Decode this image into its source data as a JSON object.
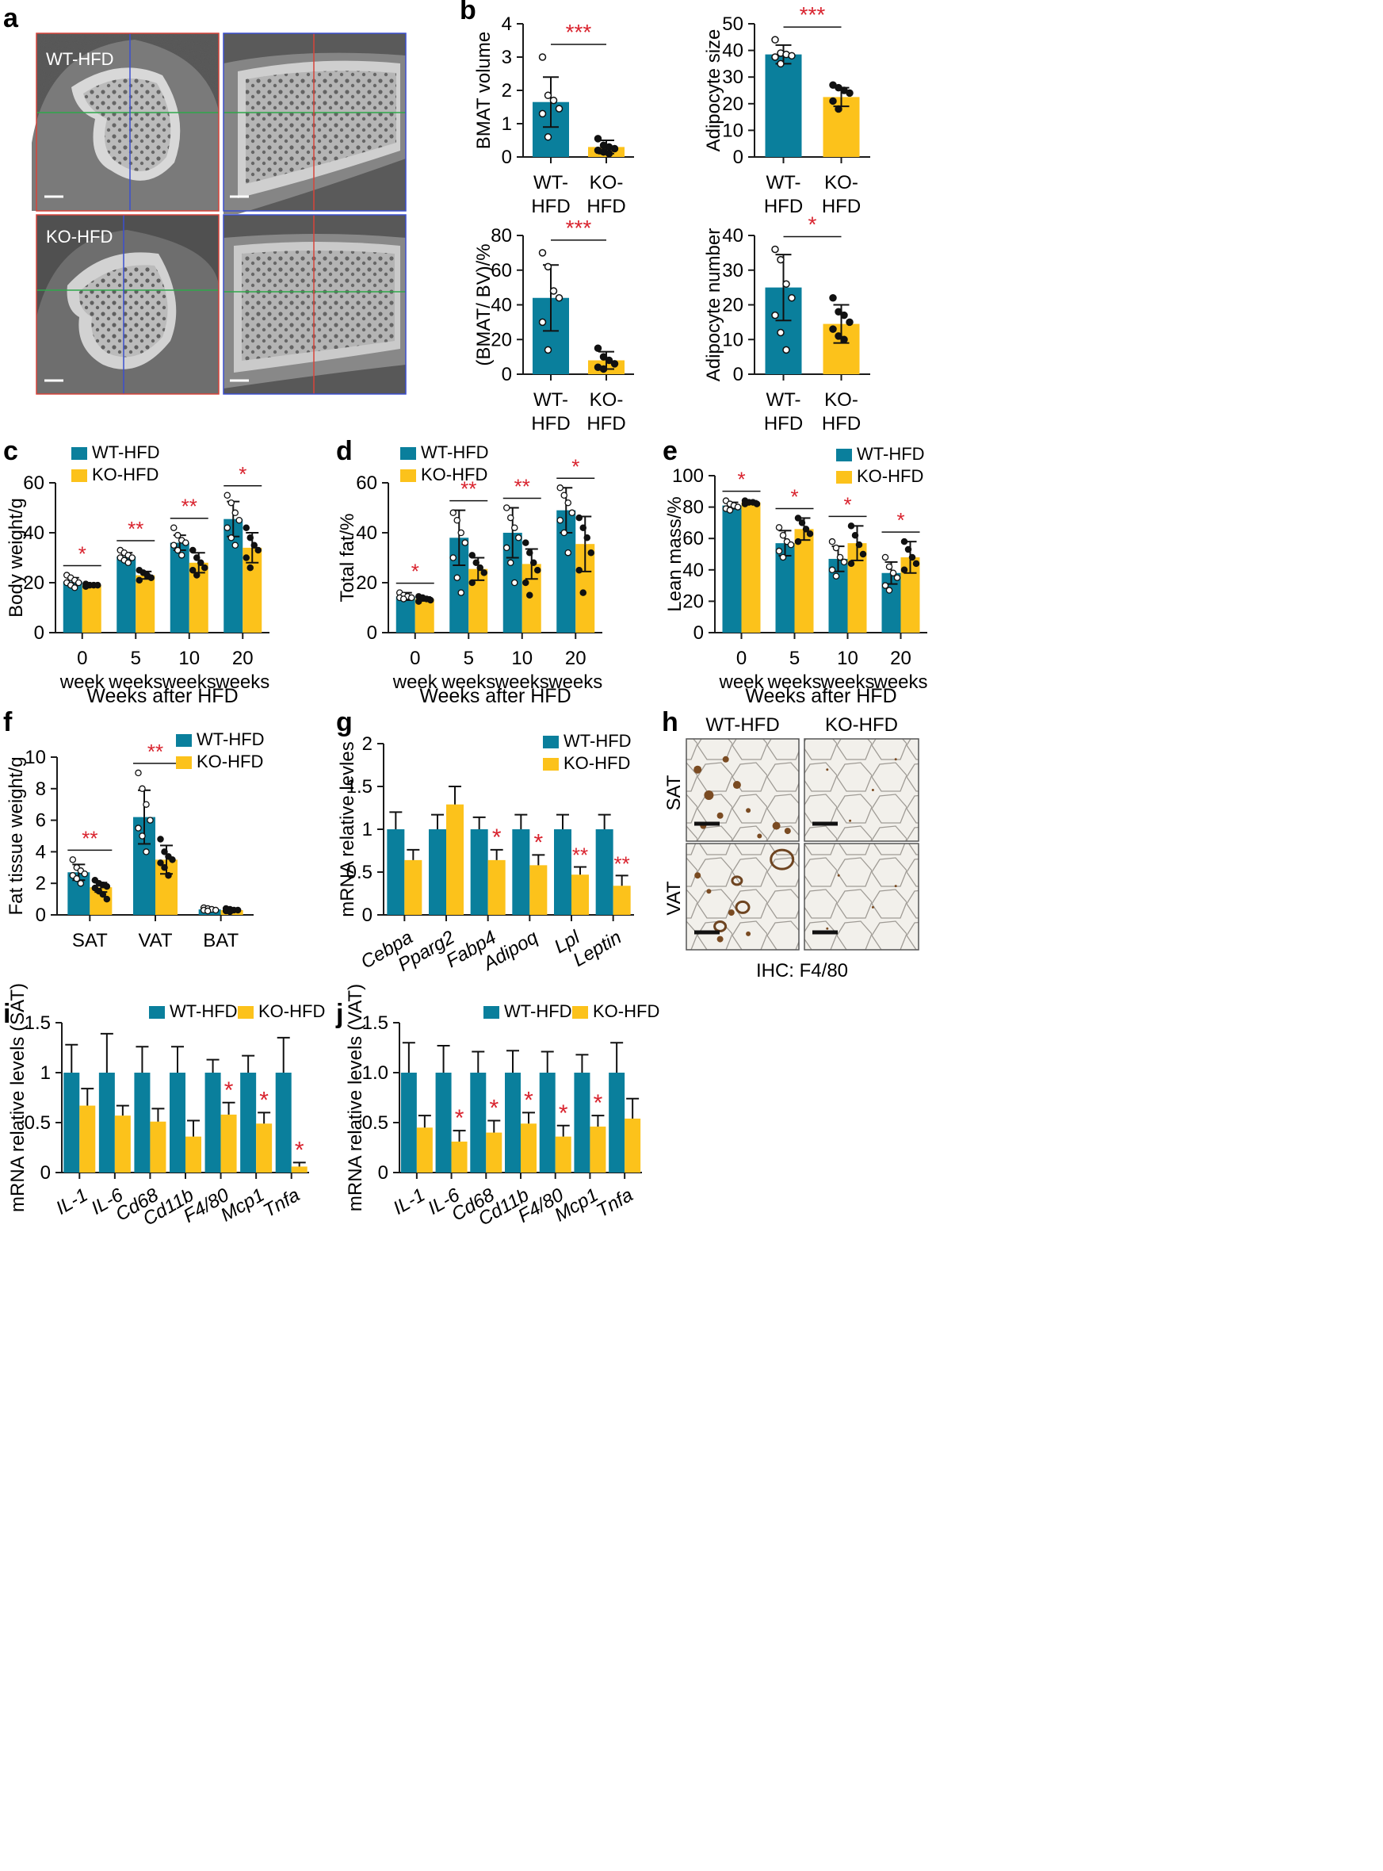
{
  "colors": {
    "wt": "#0a7f9c",
    "ko": "#fcc21b",
    "sig": "#d9232e",
    "axis": "#1a1a1a"
  },
  "panel_letters": {
    "a": "a",
    "b": "b",
    "c": "c",
    "d": "d",
    "e": "e",
    "f": "f",
    "g": "g",
    "h": "h",
    "i": "i",
    "j": "j"
  },
  "panel_a": {
    "top_label": "WT-HFD",
    "bottom_label": "KO-HFD"
  },
  "panel_h": {
    "col1": "WT-HFD",
    "col2": "KO-HFD",
    "row1": "SAT",
    "row2": "VAT",
    "caption": "IHC: F4/80"
  },
  "chart_data": [
    {
      "id": "b1",
      "type": "bar",
      "ylabel": "BMAT volume",
      "ylim": [
        0,
        4
      ],
      "yticks": [
        "0",
        "1",
        "2",
        "3",
        "4"
      ],
      "categories": [
        [
          "WT-",
          "HFD"
        ],
        [
          "KO-",
          "HFD"
        ]
      ],
      "values": [
        1.65,
        0.3
      ],
      "errors": [
        0.75,
        0.2
      ],
      "sig": [
        "***"
      ],
      "points": [
        [
          3.0,
          1.85,
          1.7,
          1.45,
          1.3,
          0.6
        ],
        [
          0.55,
          0.35,
          0.3,
          0.25,
          0.2,
          0.15,
          0.1
        ]
      ]
    },
    {
      "id": "b2",
      "type": "bar",
      "ylabel": "Adipocyte size",
      "ylim": [
        0,
        50
      ],
      "yticks": [
        "0",
        "10",
        "20",
        "30",
        "40",
        "50"
      ],
      "categories": [
        [
          "WT-",
          "HFD"
        ],
        [
          "KO-",
          "HFD"
        ]
      ],
      "values": [
        38.5,
        22.5
      ],
      "errors": [
        3.5,
        3.5
      ],
      "sig": [
        "***"
      ],
      "points": [
        [
          44,
          39,
          38.5,
          38,
          37.5,
          35
        ],
        [
          27,
          26,
          25,
          24,
          21,
          18
        ]
      ]
    },
    {
      "id": "b3",
      "type": "bar",
      "ylabel": "(BMAT/ BV)/%",
      "ylim": [
        0,
        80
      ],
      "yticks": [
        "0",
        "20",
        "40",
        "60",
        "80"
      ],
      "categories": [
        [
          "WT-",
          "HFD"
        ],
        [
          "KO-",
          "HFD"
        ]
      ],
      "values": [
        44,
        8
      ],
      "errors": [
        19,
        5
      ],
      "sig": [
        "***"
      ],
      "points": [
        [
          70,
          62,
          48,
          44,
          30,
          14
        ],
        [
          15,
          10,
          8,
          6,
          4,
          3
        ]
      ]
    },
    {
      "id": "b4",
      "type": "bar",
      "ylabel": "Adipocyte number",
      "ylim": [
        0,
        40
      ],
      "yticks": [
        "0",
        "10",
        "20",
        "30",
        "40"
      ],
      "categories": [
        [
          "WT-",
          "HFD"
        ],
        [
          "KO-",
          "HFD"
        ]
      ],
      "values": [
        25,
        14.5
      ],
      "errors": [
        9.5,
        5.5
      ],
      "sig": [
        "*"
      ],
      "points": [
        [
          36,
          33,
          26,
          22,
          17,
          12,
          7
        ],
        [
          22,
          18,
          17,
          15,
          13,
          11,
          10
        ]
      ]
    },
    {
      "id": "c",
      "type": "bar",
      "ylabel": "Body weight/g",
      "xlabel": "Weeks after HFD",
      "ylim": [
        0,
        60
      ],
      "yticks": [
        "0",
        "20",
        "40",
        "60"
      ],
      "categories": [
        [
          "0",
          "week"
        ],
        [
          "5",
          "weeks"
        ],
        [
          "10",
          "weeks"
        ],
        [
          "20",
          "weeks"
        ]
      ],
      "series": [
        {
          "name": "WT-HFD",
          "values": [
            20.5,
            30.5,
            36,
            45.5
          ],
          "errors": [
            1.5,
            1.5,
            3,
            7
          ]
        },
        {
          "name": "KO-HFD",
          "values": [
            19,
            23,
            28,
            34
          ],
          "errors": [
            0.5,
            1.5,
            4,
            6
          ]
        }
      ],
      "sig": [
        "*",
        "**",
        "**",
        "*"
      ],
      "legend": "top-left",
      "points": [
        [
          [
            23,
            22,
            21,
            20,
            20,
            19,
            18
          ],
          [
            33,
            32,
            31,
            30,
            30,
            29,
            28
          ],
          [
            42,
            39,
            37,
            36,
            35,
            33,
            31
          ],
          [
            55,
            52,
            48,
            45,
            42,
            38,
            35
          ]
        ],
        [
          [
            19.5,
            19,
            19,
            19,
            18.5
          ],
          [
            25,
            24,
            23,
            22,
            21
          ],
          [
            33,
            30,
            28,
            26,
            25,
            23
          ],
          [
            42,
            38,
            35,
            33,
            30,
            26
          ]
        ]
      ]
    },
    {
      "id": "d",
      "type": "bar",
      "ylabel": "Total fat/%",
      "xlabel": "Weeks after HFD",
      "ylim": [
        0,
        60
      ],
      "yticks": [
        "0",
        "20",
        "40",
        "60"
      ],
      "categories": [
        [
          "0",
          "week"
        ],
        [
          "5",
          "weeks"
        ],
        [
          "10",
          "weeks"
        ],
        [
          "20",
          "weeks"
        ]
      ],
      "series": [
        {
          "name": "WT-HFD",
          "values": [
            14.5,
            38,
            40,
            49
          ],
          "errors": [
            1.5,
            11,
            10,
            9
          ]
        },
        {
          "name": "KO-HFD",
          "values": [
            13.5,
            25.5,
            27.5,
            35.5
          ],
          "errors": [
            0.8,
            4.5,
            6,
            11
          ]
        }
      ],
      "sig": [
        "*",
        "**",
        "**",
        "*"
      ],
      "legend": "top-left",
      "points": [
        [
          [
            16,
            15,
            14.5,
            14,
            14,
            13.5
          ],
          [
            48,
            45,
            40,
            36,
            30,
            22,
            16
          ],
          [
            50,
            46,
            42,
            38,
            34,
            28,
            20
          ],
          [
            58,
            55,
            52,
            48,
            45,
            40,
            32
          ]
        ],
        [
          [
            14.5,
            14,
            13.5,
            13,
            12.5
          ],
          [
            31,
            28,
            26,
            24,
            20
          ],
          [
            36,
            32,
            28,
            25,
            20,
            15
          ],
          [
            46,
            42,
            38,
            32,
            25,
            16
          ]
        ]
      ]
    },
    {
      "id": "e",
      "type": "bar",
      "ylabel": "Lean mass/%",
      "xlabel": "Weeks after HFD",
      "ylim": [
        0,
        100
      ],
      "yticks": [
        "0",
        "20",
        "40",
        "60",
        "80",
        "100"
      ],
      "categories": [
        [
          "0",
          "week"
        ],
        [
          "5",
          "weeks"
        ],
        [
          "10",
          "weeks"
        ],
        [
          "20",
          "weeks"
        ]
      ],
      "series": [
        {
          "name": "WT-HFD",
          "values": [
            81,
            57,
            47,
            38
          ],
          "errors": [
            2,
            8,
            8,
            7
          ]
        },
        {
          "name": "KO-HFD",
          "values": [
            83,
            66,
            57,
            48
          ],
          "errors": [
            1,
            7,
            11,
            10
          ]
        }
      ],
      "sig": [
        "*",
        "*",
        "*",
        "*"
      ],
      "legend": "top-right",
      "points": [
        [
          [
            84,
            82,
            81,
            80,
            79,
            78
          ],
          [
            67,
            62,
            58,
            56,
            52,
            48
          ],
          [
            58,
            54,
            48,
            45,
            40,
            36
          ],
          [
            48,
            42,
            38,
            35,
            30,
            27
          ]
        ],
        [
          [
            84,
            83,
            83,
            82,
            82
          ],
          [
            73,
            70,
            66,
            63,
            58
          ],
          [
            68,
            62,
            56,
            50,
            44
          ],
          [
            58,
            53,
            48,
            44,
            40
          ]
        ]
      ]
    },
    {
      "id": "f",
      "type": "bar",
      "ylabel": "Fat tissue weight/g",
      "ylim": [
        0,
        10
      ],
      "yticks": [
        "0",
        "2",
        "4",
        "6",
        "8",
        "10"
      ],
      "categories": [
        [
          "SAT"
        ],
        [
          "VAT"
        ],
        [
          "BAT"
        ]
      ],
      "series": [
        {
          "name": "WT-HFD",
          "values": [
            2.7,
            6.2,
            0.35
          ],
          "errors": [
            0.5,
            1.7,
            0.05
          ]
        },
        {
          "name": "KO-HFD",
          "values": [
            1.75,
            3.5,
            0.3
          ],
          "errors": [
            0.3,
            0.9,
            0.05
          ]
        }
      ],
      "sig": [
        "**",
        "**",
        ""
      ],
      "legend": "top-right",
      "points": [
        [
          [
            3.5,
            3.0,
            2.8,
            2.6,
            2.5,
            2.3,
            2.0
          ],
          [
            9.0,
            8.0,
            7.0,
            6.0,
            5.5,
            5.0,
            4.0
          ],
          [
            0.45,
            0.4,
            0.35,
            0.3,
            0.3,
            0.25
          ]
        ],
        [
          [
            2.2,
            2.0,
            1.9,
            1.8,
            1.7,
            1.5,
            1.3,
            1.0
          ],
          [
            4.8,
            4.0,
            3.7,
            3.5,
            3.3,
            3.0,
            2.5
          ],
          [
            0.4,
            0.35,
            0.3,
            0.3,
            0.25,
            0.2
          ]
        ]
      ]
    },
    {
      "id": "g",
      "type": "bar",
      "ylabel": "mRNA relative levles",
      "ylim": [
        0,
        2
      ],
      "yticks": [
        "0",
        "0.5",
        "1",
        "1.5",
        "2"
      ],
      "categories": [
        [
          "Cebpa"
        ],
        [
          "Pparg2"
        ],
        [
          "Fabp4"
        ],
        [
          "Adipoq"
        ],
        [
          "Lpl"
        ],
        [
          "Leptin"
        ]
      ],
      "italic_x": true,
      "series": [
        {
          "name": "WT-HFD",
          "values": [
            1,
            1,
            1,
            1,
            1,
            1
          ],
          "errors": [
            0.2,
            0.17,
            0.14,
            0.17,
            0.17,
            0.17
          ]
        },
        {
          "name": "KO-HFD",
          "values": [
            0.64,
            1.29,
            0.64,
            0.58,
            0.47,
            0.34
          ],
          "errors": [
            0.12,
            0.21,
            0.12,
            0.12,
            0.09,
            0.12
          ]
        }
      ],
      "sig": [
        "",
        "",
        "*",
        "*",
        "**",
        "**"
      ],
      "legend": "top-right"
    },
    {
      "id": "i",
      "type": "bar",
      "ylabel": "mRNA relative levels (SAT)",
      "ylim": [
        0,
        1.5
      ],
      "yticks": [
        "0",
        "0.5",
        "1",
        "1.5"
      ],
      "categories": [
        [
          "IL-1"
        ],
        [
          "IL-6"
        ],
        [
          "Cd68"
        ],
        [
          "Cd11b"
        ],
        [
          "F4/80"
        ],
        [
          "Mcp1"
        ],
        [
          "Tnfa"
        ]
      ],
      "italic_x": true,
      "series": [
        {
          "name": "WT-HFD",
          "values": [
            1,
            1,
            1,
            1,
            1,
            1,
            1
          ],
          "errors": [
            0.28,
            0.39,
            0.26,
            0.26,
            0.13,
            0.17,
            0.35
          ]
        },
        {
          "name": "KO-HFD",
          "values": [
            0.67,
            0.57,
            0.51,
            0.36,
            0.58,
            0.49,
            0.06
          ],
          " errors": [
            0.17,
            0.1,
            0.13,
            0.16,
            0.12,
            0.11,
            0.04
          ]
        }
      ],
      "sig": [
        "",
        "",
        "",
        "",
        "*",
        "*",
        "*"
      ],
      "legend": "top-center"
    },
    {
      "id": "j",
      "type": "bar",
      "ylabel": "mRNA relative levels (VAT)",
      "ylim": [
        0,
        1.5
      ],
      "yticks": [
        "0",
        "0.5",
        "1.0",
        "1.5"
      ],
      "categories": [
        [
          "IL-1"
        ],
        [
          "IL-6"
        ],
        [
          "Cd68"
        ],
        [
          "Cd11b"
        ],
        [
          "F4/80"
        ],
        [
          "Mcp1"
        ],
        [
          "Tnfa"
        ]
      ],
      "italic_x": true,
      "series": [
        {
          "name": "WT-HFD",
          "values": [
            1,
            1,
            1,
            1,
            1,
            1,
            1
          ],
          "errors": [
            0.3,
            0.27,
            0.21,
            0.22,
            0.21,
            0.18,
            0.3
          ]
        },
        {
          "name": "KO-HFD",
          "values": [
            0.45,
            0.31,
            0.4,
            0.49,
            0.36,
            0.46,
            0.54
          ],
          "errors": [
            0.12,
            0.11,
            0.12,
            0.11,
            0.11,
            0.11,
            0.2
          ]
        }
      ],
      "sig": [
        "",
        "*",
        "*",
        "*",
        "*",
        "*",
        ""
      ],
      "legend": "top-center"
    }
  ]
}
